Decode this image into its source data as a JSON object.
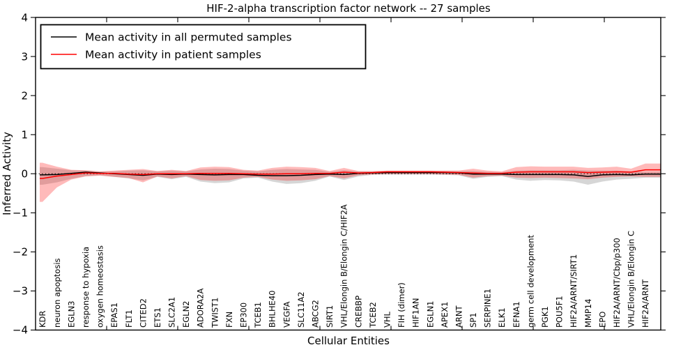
{
  "figure": {
    "title": "HIF-2-alpha transcription factor network -- 27 samples",
    "xlabel": "Cellular Entities",
    "ylabel": "Inferred Activity",
    "background_color": "#ffffff"
  },
  "legend": {
    "entries": [
      {
        "label": "Mean activity in all permuted samples",
        "color": "#000000"
      },
      {
        "label": "Mean activity in patient samples",
        "color": "#ff0000"
      }
    ]
  },
  "axes": {
    "y_tick_labels": [
      "4",
      "3",
      "2",
      "1",
      "0",
      "−1",
      "−2",
      "−3",
      "−4"
    ],
    "y_tick_values": [
      4,
      3,
      2,
      1,
      0,
      -1,
      -2,
      -3,
      -4
    ],
    "ylim": [
      -4,
      4
    ]
  },
  "chart_data": {
    "type": "line",
    "title": "HIF-2-alpha transcription factor network -- 27 samples",
    "xlabel": "Cellular Entities",
    "ylabel": "Inferred Activity",
    "ylim": [
      -4,
      4
    ],
    "grid": false,
    "legend_position": "upper left",
    "zero_line": {
      "value": 0,
      "style": "dotted",
      "color": "#000000"
    },
    "categories": [
      "KDR",
      "neuron apoptosis",
      "EGLN3",
      "response to hypoxia",
      "oxygen homeostasis",
      "EPAS1",
      "FLT1",
      "CITED2",
      "ETS1",
      "SLC2A1",
      "EGLN2",
      "ADORA2A",
      "TWIST1",
      "FXN",
      "EP300",
      "TCEB1",
      "BHLHE40",
      "VEGFA",
      "SLC11A2",
      "ABCG2",
      "SIRT1",
      "VHL/Elongin B/Elongin C/HIF2A",
      "CREBBP",
      "TCEB2",
      "VHL",
      "FIH (dimer)",
      "HIF1AN",
      "EGLN1",
      "APEX1",
      "ARNT",
      "SP1",
      "SERPINE1",
      "ELK1",
      "EFNA1",
      "germ cell development",
      "PGK1",
      "POU5F1",
      "HIF2A/ARNT/SIRT1",
      "MMP14",
      "EPO",
      "HIF2A/ARNT/Cbp/p300",
      "VHL/Elongin B/Elongin C",
      "HIF2A/ARNT"
    ],
    "series": [
      {
        "name": "Mean activity in all permuted samples",
        "color": "#000000",
        "values": [
          -0.03,
          -0.02,
          0.01,
          0.04,
          0.02,
          0.0,
          -0.02,
          -0.04,
          -0.01,
          -0.02,
          -0.01,
          -0.02,
          -0.03,
          -0.02,
          -0.02,
          -0.04,
          -0.05,
          -0.05,
          -0.04,
          -0.02,
          -0.01,
          -0.02,
          0.01,
          0.02,
          0.03,
          0.03,
          0.03,
          0.03,
          0.03,
          0.02,
          -0.01,
          -0.01,
          -0.01,
          -0.02,
          -0.02,
          -0.02,
          -0.02,
          -0.03,
          -0.07,
          -0.03,
          -0.02,
          -0.03,
          -0.01
        ]
      },
      {
        "name": "Mean activity in patient samples",
        "color": "#ff0000",
        "values": [
          -0.12,
          -0.06,
          -0.02,
          0.02,
          0.01,
          0.01,
          -0.01,
          -0.02,
          0.0,
          0.0,
          0.0,
          0.01,
          0.01,
          0.01,
          0.0,
          -0.01,
          -0.01,
          0.0,
          0.0,
          0.01,
          0.01,
          0.04,
          0.02,
          0.03,
          0.05,
          0.05,
          0.05,
          0.05,
          0.04,
          0.03,
          0.02,
          0.01,
          0.01,
          0.04,
          0.05,
          0.05,
          0.05,
          0.05,
          0.03,
          0.04,
          0.05,
          0.04,
          0.1
        ]
      }
    ],
    "bands": [
      {
        "name": "permuted samples spread",
        "color": "#808080",
        "opacity": 0.32,
        "lo": [
          -0.28,
          -0.22,
          -0.13,
          -0.06,
          -0.04,
          -0.08,
          -0.12,
          -0.17,
          -0.08,
          -0.14,
          -0.08,
          -0.2,
          -0.24,
          -0.22,
          -0.12,
          -0.1,
          -0.2,
          -0.26,
          -0.24,
          -0.18,
          -0.07,
          -0.16,
          -0.07,
          -0.03,
          -0.02,
          -0.02,
          -0.02,
          -0.02,
          -0.03,
          -0.04,
          -0.13,
          -0.08,
          -0.06,
          -0.15,
          -0.18,
          -0.16,
          -0.17,
          -0.2,
          -0.28,
          -0.2,
          -0.15,
          -0.13,
          -0.1
        ],
        "hi": [
          0.17,
          0.13,
          0.09,
          0.08,
          0.05,
          0.06,
          0.08,
          0.09,
          0.06,
          0.08,
          0.06,
          0.11,
          0.13,
          0.12,
          0.08,
          0.06,
          0.1,
          0.12,
          0.11,
          0.1,
          0.05,
          0.09,
          0.06,
          0.06,
          0.07,
          0.07,
          0.07,
          0.07,
          0.07,
          0.07,
          0.07,
          0.05,
          0.04,
          0.08,
          0.09,
          0.09,
          0.09,
          0.1,
          0.08,
          0.08,
          0.08,
          0.06,
          0.05
        ]
      },
      {
        "name": "patient samples spread",
        "color": "#ff0000",
        "opacity": 0.27,
        "lo": [
          -0.72,
          -0.35,
          -0.15,
          -0.07,
          -0.05,
          -0.08,
          -0.11,
          -0.22,
          -0.07,
          -0.12,
          -0.06,
          -0.16,
          -0.18,
          -0.17,
          -0.1,
          -0.08,
          -0.15,
          -0.18,
          -0.17,
          -0.14,
          -0.06,
          -0.12,
          -0.04,
          -0.02,
          -0.01,
          -0.01,
          -0.01,
          -0.01,
          -0.02,
          -0.03,
          -0.1,
          -0.06,
          -0.05,
          -0.1,
          -0.11,
          -0.1,
          -0.11,
          -0.12,
          -0.14,
          -0.1,
          -0.08,
          -0.07,
          -0.08
        ],
        "hi": [
          0.28,
          0.18,
          0.1,
          0.09,
          0.06,
          0.08,
          0.1,
          0.12,
          0.07,
          0.1,
          0.07,
          0.16,
          0.18,
          0.17,
          0.1,
          0.08,
          0.15,
          0.18,
          0.17,
          0.15,
          0.07,
          0.15,
          0.07,
          0.07,
          0.08,
          0.08,
          0.08,
          0.08,
          0.08,
          0.08,
          0.13,
          0.08,
          0.06,
          0.17,
          0.19,
          0.18,
          0.18,
          0.18,
          0.15,
          0.16,
          0.18,
          0.13,
          0.26
        ]
      }
    ]
  }
}
